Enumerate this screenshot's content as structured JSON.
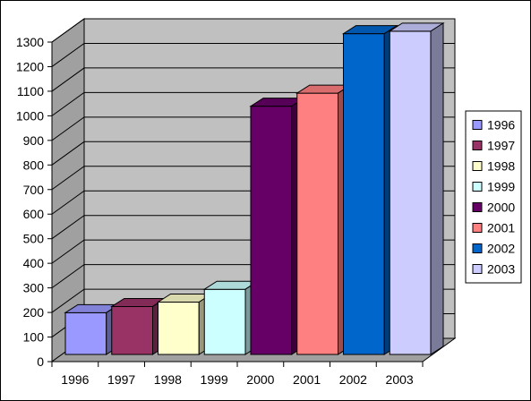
{
  "chart_data": {
    "type": "bar",
    "categories": [
      "1996",
      "1997",
      "1998",
      "1999",
      "2000",
      "2001",
      "2002",
      "2003"
    ],
    "values": [
      170,
      195,
      213,
      265,
      1010,
      1063,
      1305,
      1315
    ],
    "colors": [
      "#9999ff",
      "#993366",
      "#ffffcc",
      "#ccffff",
      "#660066",
      "#ff8080",
      "#0066cc",
      "#ccccff"
    ],
    "title": "",
    "xlabel": "",
    "ylabel": "",
    "ylim": [
      0,
      1300
    ],
    "yticks": [
      "0",
      "100",
      "200",
      "300",
      "400",
      "500",
      "600",
      "700",
      "800",
      "900",
      "1000",
      "1100",
      "1200",
      "1300"
    ],
    "grid": true,
    "style": "3d-column",
    "wall_color": "#c0c0c0",
    "legend": {
      "position": "right",
      "entries": [
        "1996",
        "1997",
        "1998",
        "1999",
        "2000",
        "2001",
        "2002",
        "2003"
      ]
    }
  }
}
